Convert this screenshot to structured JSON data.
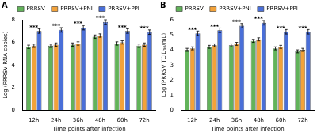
{
  "chart_data": [
    {
      "type": "bar",
      "title": "A",
      "categories": [
        "12h",
        "24h",
        "36h",
        "48h",
        "60h",
        "72h"
      ],
      "x_label": "Time points after infection",
      "y_label": "Log (PRRSV RNA copies)",
      "series": [
        {
          "name": "PRRSV",
          "color": "#62b35a",
          "values": [
            5.6,
            5.7,
            5.8,
            6.5,
            5.9,
            5.7
          ],
          "errors": [
            0.15,
            0.15,
            0.15,
            0.15,
            0.15,
            0.15
          ]
        },
        {
          "name": "PRRSV+PNI",
          "color": "#f2a23a",
          "values": [
            5.7,
            5.8,
            5.9,
            6.6,
            6.0,
            5.8
          ],
          "errors": [
            0.15,
            0.15,
            0.15,
            0.15,
            0.15,
            0.15
          ]
        },
        {
          "name": "PRRSV+PPI",
          "color": "#4a6fd8",
          "values": [
            7.0,
            7.1,
            7.3,
            7.8,
            7.0,
            6.9
          ],
          "errors": [
            0.2,
            0.2,
            0.2,
            0.2,
            0.2,
            0.2
          ]
        }
      ],
      "annotations": [
        {
          "category": "12h",
          "text": "***"
        },
        {
          "category": "24h",
          "text": "***"
        },
        {
          "category": "36h",
          "text": "***"
        },
        {
          "category": "48h",
          "text": "***"
        },
        {
          "category": "60h",
          "text": "***"
        },
        {
          "category": "72h",
          "text": "***"
        }
      ],
      "ylim": [
        0,
        8
      ],
      "yticks": [
        0,
        2,
        4,
        6,
        8
      ],
      "grid": false,
      "legend": "top"
    },
    {
      "type": "bar",
      "title": "B",
      "categories": [
        "12h",
        "24h",
        "36h",
        "48h",
        "60h",
        "72h"
      ],
      "x_label": "Time points after infection",
      "y_label": "Log (PRRSV TCID₅₀/mL)",
      "series": [
        {
          "name": "PRRSV",
          "color": "#62b35a",
          "values": [
            4.0,
            4.2,
            4.3,
            4.6,
            4.1,
            3.9
          ],
          "errors": [
            0.1,
            0.1,
            0.1,
            0.1,
            0.1,
            0.1
          ]
        },
        {
          "name": "PRRSV+PNI",
          "color": "#f2a23a",
          "values": [
            4.1,
            4.3,
            4.4,
            4.7,
            4.2,
            4.0
          ],
          "errors": [
            0.1,
            0.1,
            0.1,
            0.1,
            0.1,
            0.1
          ]
        },
        {
          "name": "PRRSV+PPI",
          "color": "#4a6fd8",
          "values": [
            5.1,
            5.3,
            5.6,
            5.8,
            5.2,
            5.2
          ],
          "errors": [
            0.15,
            0.15,
            0.15,
            0.15,
            0.15,
            0.15
          ]
        }
      ],
      "annotations": [
        {
          "category": "12h",
          "text": "***"
        },
        {
          "category": "24h",
          "text": "***"
        },
        {
          "category": "36h",
          "text": "***"
        },
        {
          "category": "48h",
          "text": "***"
        },
        {
          "category": "60h",
          "text": "***"
        },
        {
          "category": "72h",
          "text": "***"
        }
      ],
      "ylim": [
        0,
        6
      ],
      "yticks": [
        0,
        1,
        2,
        3,
        4,
        5,
        6
      ],
      "grid": false,
      "legend": "top"
    }
  ]
}
